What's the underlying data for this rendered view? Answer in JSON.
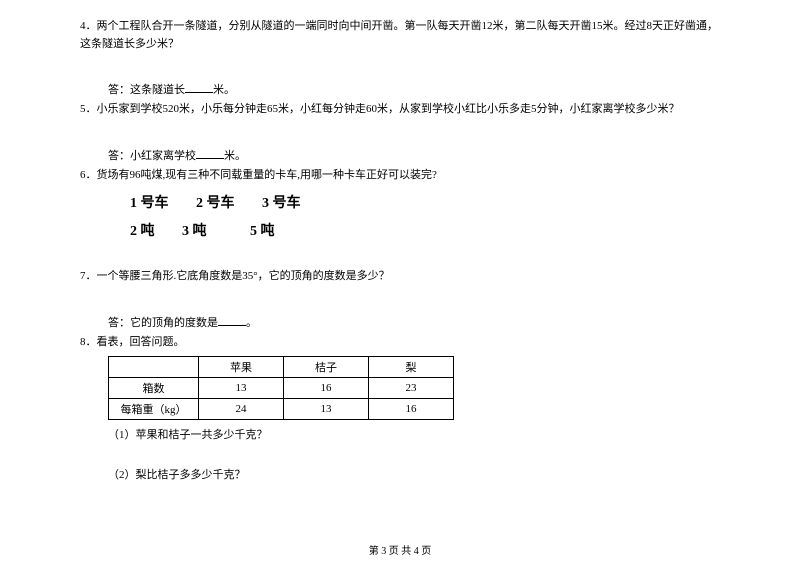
{
  "q4": {
    "text": "4．两个工程队合开一条隧道，分别从隧道的一端同时向中间开凿。第一队每天开凿12米，第二队每天开凿15米。经过8天正好凿通，这条隧道长多少米？",
    "answer_prefix": "答：这条隧道长",
    "answer_suffix": "米。"
  },
  "q5": {
    "text": "5．小乐家到学校520米，小乐每分钟走65米，小红每分钟走60米，从家到学校小红比小乐多走5分钟，小红家离学校多少米？",
    "answer_prefix": "答：小红家离学校",
    "answer_suffix": "米。"
  },
  "q6": {
    "text": "6．货场有96吨煤,现有三种不同载重量的卡车,用哪一种卡车正好可以装完?",
    "trucks_header": [
      "1 号车",
      "2 号车",
      "3 号车"
    ],
    "trucks_capacity": [
      "2 吨",
      "3 吨",
      "5 吨"
    ]
  },
  "q7": {
    "text": "7．一个等腰三角形.它底角度数是35°，它的顶角的度数是多少？",
    "answer_prefix": "答：它的顶角的度数是",
    "answer_suffix": "。"
  },
  "q8": {
    "text": "8．看表，回答问题。",
    "table": {
      "headers": [
        "",
        "苹果",
        "桔子",
        "梨"
      ],
      "row1": [
        "箱数",
        "13",
        "16",
        "23"
      ],
      "row2": [
        "每箱重（kg）",
        "24",
        "13",
        "16"
      ]
    },
    "sub1": "（1）苹果和桔子一共多少千克？",
    "sub2": "（2）梨比桔子多多少千克？"
  },
  "footer": "第 3 页 共 4 页"
}
